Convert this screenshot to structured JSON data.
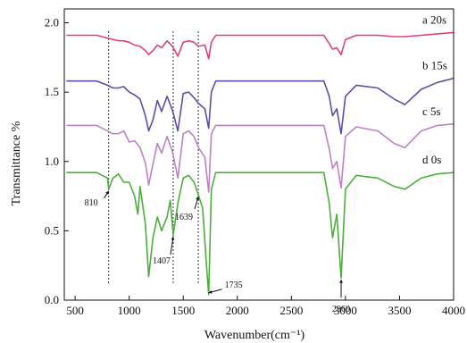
{
  "chart_data": {
    "type": "line",
    "title": "",
    "xlabel": "Wavenumber(cm⁻¹)",
    "ylabel": "Transmittance %",
    "xlim": [
      400,
      4000
    ],
    "ylim": [
      0.0,
      2.1
    ],
    "x_ticks": [
      "500",
      "1000",
      "1500",
      "2000",
      "2500",
      "3000",
      "3500",
      "4000"
    ],
    "y_ticks": [
      "0.0",
      "0.5",
      "1.0",
      "1.5",
      "2.0"
    ],
    "grid": false,
    "legend": "inline labels at right",
    "series": [
      {
        "name": "a 20s",
        "color": "#e0407a",
        "x": [
          420,
          700,
          800,
          850,
          900,
          950,
          1000,
          1050,
          1100,
          1150,
          1180,
          1220,
          1260,
          1300,
          1350,
          1400,
          1450,
          1500,
          1550,
          1600,
          1640,
          1700,
          1735,
          1760,
          1800,
          1900,
          2000,
          2500,
          2800,
          2850,
          2880,
          2920,
          2960,
          3000,
          3100,
          3300,
          3450,
          3550,
          3700,
          3850,
          4000
        ],
        "y": [
          1.91,
          1.91,
          1.89,
          1.88,
          1.87,
          1.87,
          1.86,
          1.84,
          1.83,
          1.8,
          1.77,
          1.8,
          1.84,
          1.82,
          1.87,
          1.83,
          1.76,
          1.86,
          1.87,
          1.86,
          1.83,
          1.84,
          1.74,
          1.86,
          1.91,
          1.91,
          1.91,
          1.91,
          1.91,
          1.85,
          1.81,
          1.82,
          1.77,
          1.88,
          1.91,
          1.91,
          1.9,
          1.9,
          1.91,
          1.92,
          1.93
        ]
      },
      {
        "name": "b 15s",
        "color": "#5a4fa8",
        "x": [
          420,
          700,
          800,
          850,
          900,
          950,
          1000,
          1050,
          1100,
          1150,
          1180,
          1220,
          1260,
          1300,
          1350,
          1400,
          1450,
          1500,
          1550,
          1600,
          1640,
          1700,
          1735,
          1760,
          1800,
          1900,
          2000,
          2500,
          2800,
          2850,
          2880,
          2920,
          2960,
          3000,
          3100,
          3300,
          3450,
          3550,
          3700,
          3850,
          4000
        ],
        "y": [
          1.58,
          1.58,
          1.55,
          1.53,
          1.53,
          1.54,
          1.5,
          1.48,
          1.45,
          1.33,
          1.22,
          1.3,
          1.44,
          1.36,
          1.47,
          1.37,
          1.22,
          1.49,
          1.5,
          1.46,
          1.42,
          1.38,
          1.24,
          1.5,
          1.58,
          1.58,
          1.58,
          1.58,
          1.58,
          1.47,
          1.33,
          1.38,
          1.2,
          1.47,
          1.55,
          1.53,
          1.45,
          1.41,
          1.52,
          1.57,
          1.6
        ]
      },
      {
        "name": "c  5s",
        "color": "#c080c8",
        "x": [
          420,
          700,
          800,
          850,
          900,
          950,
          1000,
          1050,
          1100,
          1150,
          1180,
          1220,
          1260,
          1300,
          1350,
          1400,
          1450,
          1500,
          1550,
          1600,
          1640,
          1700,
          1735,
          1760,
          1800,
          1900,
          2000,
          2500,
          2800,
          2850,
          2880,
          2920,
          2960,
          3000,
          3100,
          3300,
          3450,
          3550,
          3700,
          3850,
          4000
        ],
        "y": [
          1.26,
          1.26,
          1.22,
          1.2,
          1.2,
          1.22,
          1.14,
          1.15,
          1.1,
          0.99,
          0.83,
          0.98,
          1.13,
          1.06,
          1.18,
          1.07,
          0.88,
          1.2,
          1.22,
          1.18,
          1.1,
          1.03,
          0.78,
          1.2,
          1.26,
          1.26,
          1.26,
          1.26,
          1.26,
          1.09,
          0.95,
          1.0,
          0.81,
          1.18,
          1.25,
          1.22,
          1.13,
          1.1,
          1.22,
          1.26,
          1.27
        ]
      },
      {
        "name": "d  0s",
        "color": "#4caf3c",
        "x": [
          420,
          700,
          800,
          810,
          850,
          900,
          950,
          1000,
          1050,
          1080,
          1100,
          1150,
          1180,
          1220,
          1260,
          1300,
          1350,
          1380,
          1407,
          1450,
          1500,
          1550,
          1600,
          1639,
          1680,
          1710,
          1735,
          1760,
          1800,
          1900,
          2000,
          2500,
          2800,
          2850,
          2880,
          2920,
          2960,
          3000,
          3100,
          3300,
          3450,
          3550,
          3700,
          3850,
          4000
        ],
        "y": [
          0.92,
          0.92,
          0.88,
          0.8,
          0.88,
          0.91,
          0.85,
          0.85,
          0.75,
          0.62,
          0.82,
          0.55,
          0.17,
          0.45,
          0.6,
          0.5,
          0.6,
          0.72,
          0.47,
          0.7,
          0.88,
          0.9,
          0.85,
          0.76,
          0.66,
          0.3,
          0.04,
          0.8,
          0.92,
          0.92,
          0.92,
          0.92,
          0.92,
          0.7,
          0.45,
          0.62,
          0.16,
          0.8,
          0.9,
          0.88,
          0.82,
          0.8,
          0.88,
          0.91,
          0.92
        ]
      }
    ],
    "reference_lines_x": [
      810,
      1407,
      1639
    ],
    "annotations": [
      {
        "text": "810",
        "x": 810,
        "y": 0.8
      },
      {
        "text": "1407",
        "x": 1407,
        "y": 0.47
      },
      {
        "text": "1639",
        "x": 1639,
        "y": 0.76
      },
      {
        "text": "1735",
        "x": 1735,
        "y": 0.04
      },
      {
        "text": "2960",
        "x": 2960,
        "y": 0.16
      }
    ]
  }
}
